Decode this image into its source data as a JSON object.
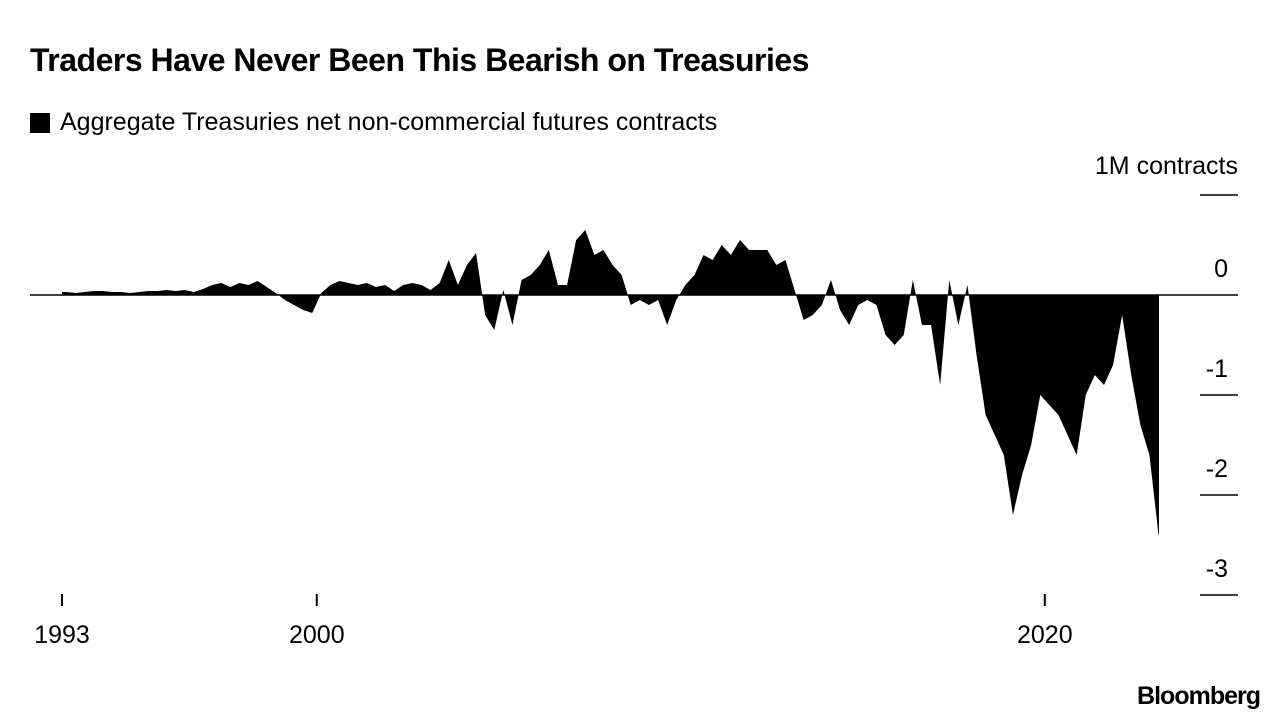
{
  "chart_data": {
    "type": "area",
    "title": "Traders Have Never Been This Bearish on Treasuries",
    "legend": [
      {
        "label": "Aggregate Treasuries net non-commercial futures contracts",
        "color": "#000000"
      }
    ],
    "legend_placement": "top-left",
    "ylabel": "1M contracts",
    "ylim": [
      -3,
      1
    ],
    "y_ticks": [
      1,
      0,
      -1,
      -2,
      -3
    ],
    "y_tick_labels": [
      "",
      "0",
      "-1",
      "-2",
      "-3"
    ],
    "x_ticks": [
      1993,
      2000,
      2020
    ],
    "x_tick_labels": [
      "1993",
      "2000",
      "2020"
    ],
    "xlim": [
      1992.1,
      2024.2
    ],
    "x_start": 1993,
    "x_step": 0.25,
    "values": [
      0.03,
      0.02,
      0.03,
      0.04,
      0.04,
      0.03,
      0.03,
      0.02,
      0.03,
      0.04,
      0.04,
      0.05,
      0.04,
      0.05,
      0.03,
      0.06,
      0.1,
      0.12,
      0.08,
      0.12,
      0.1,
      0.14,
      0.08,
      0.02,
      -0.05,
      -0.1,
      -0.15,
      -0.18,
      0.02,
      0.1,
      0.14,
      0.12,
      0.1,
      0.12,
      0.08,
      0.1,
      0.04,
      0.1,
      0.12,
      0.1,
      0.05,
      0.12,
      0.35,
      0.1,
      0.3,
      0.42,
      -0.2,
      -0.35,
      0.05,
      -0.3,
      0.15,
      0.2,
      0.3,
      0.45,
      0.1,
      0.1,
      0.55,
      0.65,
      0.4,
      0.45,
      0.3,
      0.2,
      -0.1,
      -0.05,
      -0.1,
      -0.05,
      -0.3,
      -0.05,
      0.1,
      0.2,
      0.4,
      0.35,
      0.5,
      0.4,
      0.55,
      0.45,
      0.45,
      0.45,
      0.3,
      0.35,
      0.05,
      -0.25,
      -0.2,
      -0.1,
      0.15,
      -0.15,
      -0.3,
      -0.1,
      -0.05,
      -0.1,
      -0.4,
      -0.5,
      -0.4,
      0.15,
      -0.3,
      -0.3,
      -0.9,
      0.15,
      -0.3,
      0.1,
      -0.6,
      -1.2,
      -1.4,
      -1.6,
      -2.2,
      -1.8,
      -1.5,
      -1.0,
      -1.1,
      -1.2,
      -1.4,
      -1.6,
      -1.0,
      -0.8,
      -0.9,
      -0.7,
      -0.2,
      -0.8,
      -1.3,
      -1.6,
      -2.4
    ],
    "grid": false
  },
  "source": "Bloomberg",
  "colors": {
    "fill": "#000000",
    "background": "#ffffff"
  }
}
